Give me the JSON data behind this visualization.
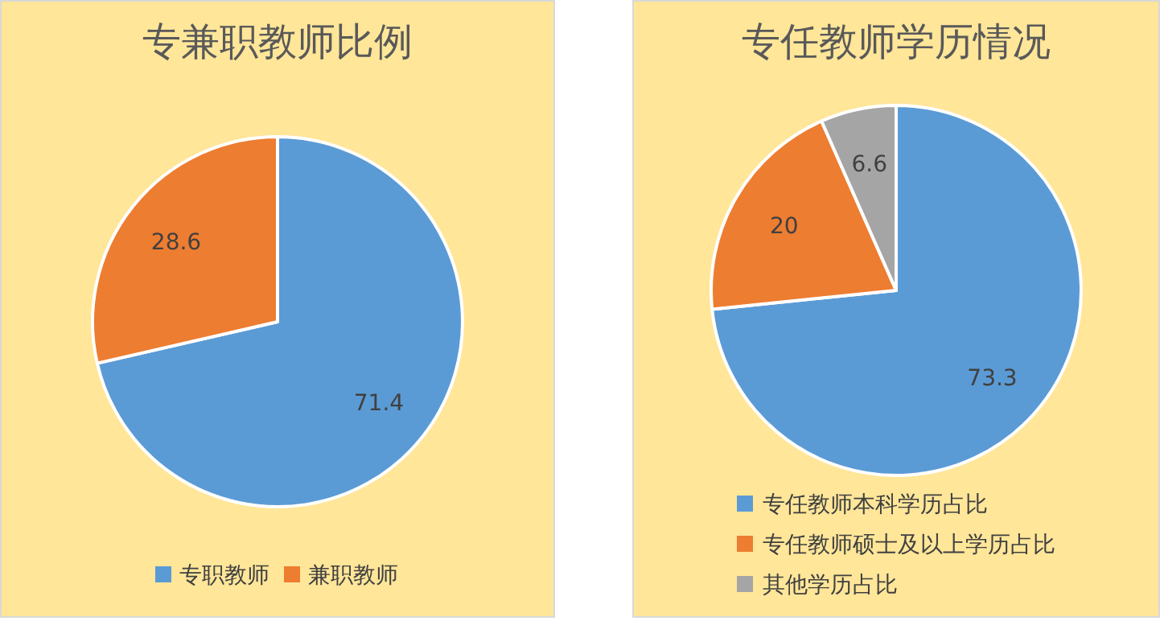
{
  "chart_data": [
    {
      "type": "pie",
      "title": "专兼职教师比例",
      "categories": [
        "专职教师",
        "兼职教师"
      ],
      "values": [
        71.4,
        28.6
      ],
      "colors": [
        "#5b9bd5",
        "#ed7d31"
      ],
      "data_labels": true,
      "legend": "bottom"
    },
    {
      "type": "pie",
      "title": "专任教师学历情况",
      "categories": [
        "专任教师本科学历占比",
        "专任教师硕士及以上学历占比",
        "其他学历占比"
      ],
      "values": [
        73.3,
        20,
        6.6
      ],
      "colors": [
        "#5b9bd5",
        "#ed7d31",
        "#a5a5a5"
      ],
      "data_labels": true,
      "legend": "bottom"
    }
  ]
}
